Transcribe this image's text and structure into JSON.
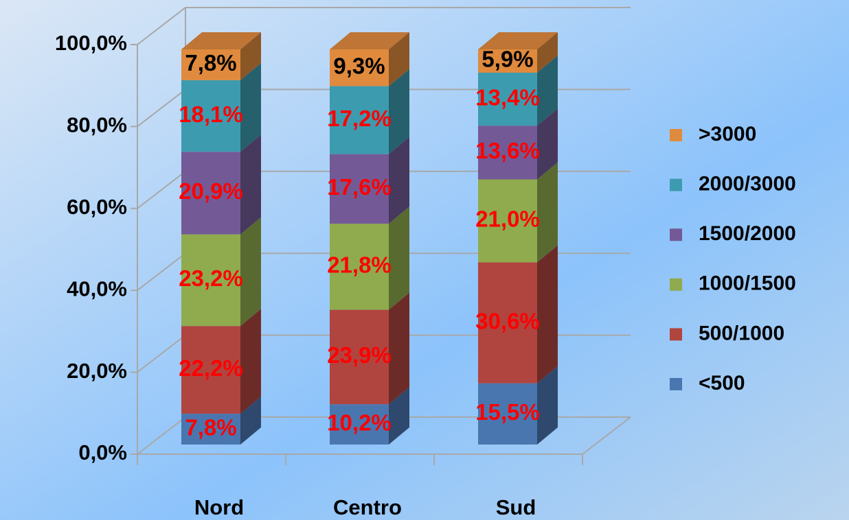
{
  "chart_data": {
    "type": "bar3d_stacked",
    "categories": [
      "Nord",
      "Centro",
      "Sud"
    ],
    "series": [
      {
        "name": "<500",
        "color": "#4a76b0",
        "label_color": "#ff0000",
        "values": [
          7.8,
          10.2,
          15.5
        ],
        "value_labels": [
          "7,8%",
          "10,2%",
          "15,5%"
        ]
      },
      {
        "name": "500/1000",
        "color": "#b04540",
        "label_color": "#ff0000",
        "values": [
          22.2,
          23.9,
          30.6
        ],
        "value_labels": [
          "22,2%",
          "23,9%",
          "30,6%"
        ]
      },
      {
        "name": "1000/1500",
        "color": "#8fab4e",
        "label_color": "#ff0000",
        "values": [
          23.2,
          21.8,
          21.0
        ],
        "value_labels": [
          "23,2%",
          "21,8%",
          "21,0%"
        ]
      },
      {
        "name": "1500/2000",
        "color": "#735a96",
        "label_color": "#ff0000",
        "values": [
          20.9,
          17.6,
          13.6
        ],
        "value_labels": [
          "20,9%",
          "17,6%",
          "13,6%"
        ]
      },
      {
        "name": "2000/3000",
        "color": "#3d9bb0",
        "label_color": "#ff0000",
        "values": [
          18.1,
          17.2,
          13.4
        ],
        "value_labels": [
          "18,1%",
          "17,2%",
          "13,4%"
        ]
      },
      {
        "name": ">3000",
        "color": "#e08a3e",
        "label_color": "#000000",
        "values": [
          7.8,
          9.3,
          5.9
        ],
        "value_labels": [
          "7,8%",
          "9,3%",
          "5,9%"
        ]
      }
    ],
    "ylim": [
      0,
      100
    ],
    "yticks": [
      {
        "value": 0,
        "label": "0,0%"
      },
      {
        "value": 20,
        "label": "20,0%"
      },
      {
        "value": 40,
        "label": "40,0%"
      },
      {
        "value": 60,
        "label": "60,0%"
      },
      {
        "value": 80,
        "label": "80,0%"
      },
      {
        "value": 100,
        "label": "100,0%"
      }
    ],
    "grid": true,
    "legend": "right"
  }
}
